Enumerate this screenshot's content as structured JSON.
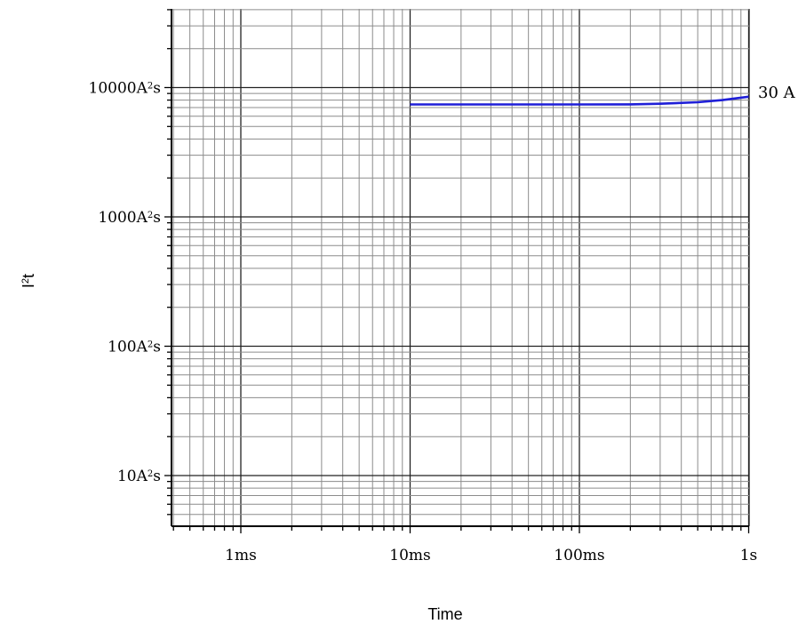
{
  "chart_data": {
    "type": "line",
    "xlabel": "Time",
    "ylabel_base": "I",
    "ylabel_sup": "2",
    "ylabel_tail": "t",
    "x_scale": "log",
    "y_scale": "log",
    "xlim": [
      "0.4ms",
      "1s"
    ],
    "ylim": [
      "4 A²s",
      "40000 A²s"
    ],
    "grid": true,
    "x_ticks": [
      {
        "label": "1ms",
        "value_s": 0.001
      },
      {
        "label": "10ms",
        "value_s": 0.01
      },
      {
        "label": "100ms",
        "value_s": 0.1
      },
      {
        "label": "1s",
        "value_s": 1
      }
    ],
    "y_ticks": [
      {
        "label_num": "10000A",
        "sup": "2",
        "unit_tail": "s",
        "value": 10000
      },
      {
        "label_num": "1000A",
        "sup": "2",
        "unit_tail": "s",
        "value": 1000
      },
      {
        "label_num": "100A",
        "sup": "2",
        "unit_tail": "s",
        "value": 100
      },
      {
        "label_num": "10A",
        "sup": "2",
        "unit_tail": "s",
        "value": 10
      }
    ],
    "series": [
      {
        "name": "30 A",
        "color": "#1f1fd8",
        "x_s": [
          0.01,
          0.02,
          0.05,
          0.1,
          0.2,
          0.3,
          0.5,
          0.7,
          1.0
        ],
        "y_A2s": [
          7400,
          7400,
          7400,
          7400,
          7420,
          7500,
          7700,
          8000,
          8500
        ]
      }
    ]
  }
}
